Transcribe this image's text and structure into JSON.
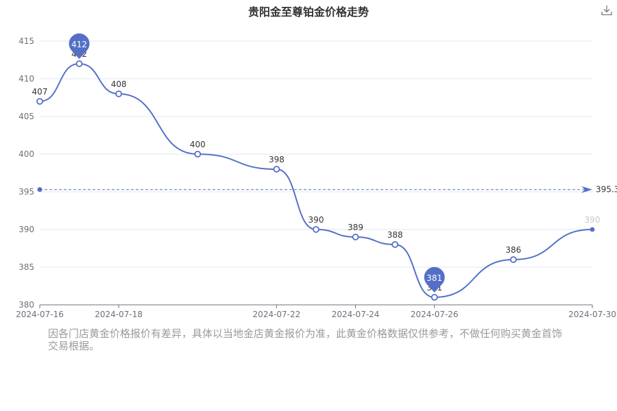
{
  "page": {
    "title": "贵阳金至尊铂金价格走势",
    "download_icon": "download-icon",
    "disclaimer": "因各门店黄金价格报价有差异，具体以当地金店黄金报价为准，此黄金价格数据仅供参考，不做任何购买黄金首饰交易根据。"
  },
  "chart_data": {
    "type": "line",
    "title": "贵阳金至尊铂金价格走势",
    "xlabel": "",
    "ylabel": "",
    "x_ticks": [
      "2024-07-16",
      "2024-07-18",
      "2024-07-22",
      "2024-07-24",
      "2024-07-26",
      "2024-07-30"
    ],
    "ylim": [
      380,
      415
    ],
    "y_ticks": [
      380,
      385,
      390,
      395,
      400,
      405,
      410,
      415
    ],
    "grid": true,
    "series": [
      {
        "points": [
          {
            "x": "2024-07-16",
            "y": 407
          },
          {
            "x": "2024-07-17",
            "y": 412
          },
          {
            "x": "2024-07-18",
            "y": 408
          },
          {
            "x": "2024-07-20",
            "y": 400
          },
          {
            "x": "2024-07-22",
            "y": 398
          },
          {
            "x": "2024-07-23",
            "y": 390
          },
          {
            "x": "2024-07-24",
            "y": 389
          },
          {
            "x": "2024-07-25",
            "y": 388
          },
          {
            "x": "2024-07-26",
            "y": 381
          },
          {
            "x": "2024-07-28",
            "y": 386
          },
          {
            "x": "2024-07-30",
            "y": 390
          }
        ]
      }
    ],
    "max_marker": {
      "label": "412",
      "x": "2024-07-17",
      "y": 412
    },
    "min_marker": {
      "label": "381",
      "x": "2024-07-26",
      "y": 381
    },
    "average_line": {
      "value": 395.3,
      "label": "395.3"
    },
    "colors": {
      "line": "#5470c6",
      "grid": "#e0e6f1",
      "axis": "#6e7079",
      "label": "#333333",
      "faded_label": "#c8c8c8"
    }
  }
}
